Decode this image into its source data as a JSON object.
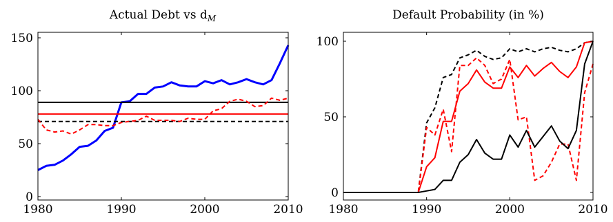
{
  "chart_data": [
    {
      "type": "line",
      "title": "Actual Debt vs d",
      "title_subscript": "M",
      "xlabel": "",
      "ylabel": "",
      "xlim": [
        1980,
        2010
      ],
      "ylim": [
        0,
        150
      ],
      "xticks": [
        1980,
        1990,
        2000,
        2010
      ],
      "yticks": [
        0,
        50,
        100,
        150
      ],
      "grid": false,
      "legend": "none",
      "series": [
        {
          "color": "#0000ff",
          "style": "solid",
          "width": "thick",
          "points": [
            [
              1980,
              25
            ],
            [
              1981,
              29
            ],
            [
              1982,
              30
            ],
            [
              1983,
              34
            ],
            [
              1984,
              40
            ],
            [
              1985,
              47
            ],
            [
              1986,
              48
            ],
            [
              1987,
              53
            ],
            [
              1988,
              62
            ],
            [
              1989,
              65
            ],
            [
              1990,
              89
            ],
            [
              1991,
              90
            ],
            [
              1992,
              97
            ],
            [
              1993,
              97
            ],
            [
              1994,
              103
            ],
            [
              1995,
              104
            ],
            [
              1996,
              108
            ],
            [
              1997,
              105
            ],
            [
              1998,
              104
            ],
            [
              1999,
              104
            ],
            [
              2000,
              109
            ],
            [
              2001,
              107
            ],
            [
              2002,
              110
            ],
            [
              2003,
              106
            ],
            [
              2004,
              108
            ],
            [
              2005,
              111
            ],
            [
              2006,
              108
            ],
            [
              2007,
              106
            ],
            [
              2008,
              110
            ],
            [
              2009,
              126
            ],
            [
              2010,
              143
            ]
          ]
        },
        {
          "color": "#000000",
          "style": "solid",
          "width": "normal",
          "points": [
            [
              1980,
              89
            ],
            [
              2010,
              89
            ]
          ]
        },
        {
          "color": "#ff0000",
          "style": "solid",
          "width": "normal",
          "points": [
            [
              1980,
              78
            ],
            [
              2010,
              78
            ]
          ]
        },
        {
          "color": "#000000",
          "style": "dashed",
          "width": "normal",
          "points": [
            [
              1980,
              71
            ],
            [
              2010,
              71
            ]
          ]
        },
        {
          "color": "#ff0000",
          "style": "dashed",
          "width": "normal",
          "points": [
            [
              1980,
              73
            ],
            [
              1981,
              63
            ],
            [
              1982,
              61
            ],
            [
              1983,
              62
            ],
            [
              1984,
              59
            ],
            [
              1985,
              63
            ],
            [
              1986,
              68
            ],
            [
              1987,
              68
            ],
            [
              1988,
              67
            ],
            [
              1989,
              67
            ],
            [
              1990,
              70
            ],
            [
              1991,
              71
            ],
            [
              1992,
              72
            ],
            [
              1993,
              76
            ],
            [
              1994,
              72
            ],
            [
              1995,
              72
            ],
            [
              1996,
              72
            ],
            [
              1997,
              71
            ],
            [
              1998,
              74
            ],
            [
              1999,
              73
            ],
            [
              2000,
              73
            ],
            [
              2001,
              81
            ],
            [
              2002,
              83
            ],
            [
              2003,
              90
            ],
            [
              2004,
              92
            ],
            [
              2005,
              90
            ],
            [
              2006,
              85
            ],
            [
              2007,
              86
            ],
            [
              2008,
              93
            ],
            [
              2009,
              91
            ],
            [
              2010,
              93
            ]
          ]
        }
      ]
    },
    {
      "type": "line",
      "title": "Default Probability (in %)",
      "xlabel": "",
      "ylabel": "",
      "xlim": [
        1980,
        2010
      ],
      "ylim": [
        0,
        100
      ],
      "xticks": [
        1980,
        1990,
        2000,
        2010
      ],
      "yticks": [
        0,
        50,
        100
      ],
      "grid": false,
      "legend": "none",
      "series": [
        {
          "color": "#000000",
          "style": "dashed",
          "width": "normal",
          "points": [
            [
              1980,
              0
            ],
            [
              1989,
              0
            ],
            [
              1990,
              46
            ],
            [
              1991,
              56
            ],
            [
              1992,
              76
            ],
            [
              1993,
              78
            ],
            [
              1994,
              89
            ],
            [
              1995,
              91
            ],
            [
              1996,
              94
            ],
            [
              1997,
              90
            ],
            [
              1998,
              88
            ],
            [
              1999,
              89
            ],
            [
              2000,
              95
            ],
            [
              2001,
              93
            ],
            [
              2002,
              95
            ],
            [
              2003,
              93
            ],
            [
              2004,
              95
            ],
            [
              2005,
              96
            ],
            [
              2006,
              94
            ],
            [
              2007,
              93
            ],
            [
              2008,
              95
            ],
            [
              2009,
              99
            ],
            [
              2010,
              100
            ]
          ]
        },
        {
          "color": "#ff0000",
          "style": "solid",
          "width": "normal",
          "points": [
            [
              1980,
              0
            ],
            [
              1989,
              0
            ],
            [
              1990,
              17
            ],
            [
              1991,
              23
            ],
            [
              1992,
              47
            ],
            [
              1993,
              47
            ],
            [
              1994,
              67
            ],
            [
              1995,
              72
            ],
            [
              1996,
              81
            ],
            [
              1997,
              73
            ],
            [
              1998,
              69
            ],
            [
              1999,
              69
            ],
            [
              2000,
              83
            ],
            [
              2001,
              76
            ],
            [
              2002,
              84
            ],
            [
              2003,
              77
            ],
            [
              2004,
              82
            ],
            [
              2005,
              86
            ],
            [
              2006,
              80
            ],
            [
              2007,
              76
            ],
            [
              2008,
              83
            ],
            [
              2009,
              99
            ],
            [
              2010,
              100
            ]
          ]
        },
        {
          "color": "#ff0000",
          "style": "dashed",
          "width": "normal",
          "points": [
            [
              1980,
              0
            ],
            [
              1989,
              0
            ],
            [
              1990,
              43
            ],
            [
              1991,
              38
            ],
            [
              1992,
              55
            ],
            [
              1993,
              27
            ],
            [
              1994,
              84
            ],
            [
              1995,
              84
            ],
            [
              1996,
              89
            ],
            [
              1997,
              84
            ],
            [
              1998,
              72
            ],
            [
              1999,
              75
            ],
            [
              2000,
              88
            ],
            [
              2001,
              48
            ],
            [
              2002,
              50
            ],
            [
              2003,
              8
            ],
            [
              2004,
              11
            ],
            [
              2005,
              20
            ],
            [
              2006,
              32
            ],
            [
              2007,
              32
            ],
            [
              2008,
              8
            ],
            [
              2009,
              66
            ],
            [
              2010,
              85
            ]
          ]
        },
        {
          "color": "#000000",
          "style": "solid",
          "width": "normal",
          "points": [
            [
              1980,
              0
            ],
            [
              1989,
              0
            ],
            [
              1990,
              1
            ],
            [
              1991,
              2
            ],
            [
              1992,
              8
            ],
            [
              1993,
              8
            ],
            [
              1994,
              20
            ],
            [
              1995,
              25
            ],
            [
              1996,
              35
            ],
            [
              1997,
              26
            ],
            [
              1998,
              22
            ],
            [
              1999,
              22
            ],
            [
              2000,
              38
            ],
            [
              2001,
              30
            ],
            [
              2002,
              41
            ],
            [
              2003,
              30
            ],
            [
              2004,
              37
            ],
            [
              2005,
              44
            ],
            [
              2006,
              34
            ],
            [
              2007,
              29
            ],
            [
              2008,
              41
            ],
            [
              2009,
              85
            ],
            [
              2010,
              100
            ]
          ]
        }
      ]
    }
  ]
}
